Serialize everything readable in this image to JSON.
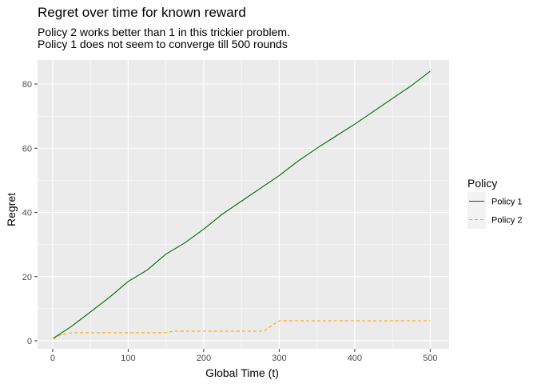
{
  "chart_data": {
    "type": "line",
    "title": "Regret over time for known reward",
    "subtitle": [
      "Policy 2 works better than 1 in this trickier problem.",
      "Policy 1 does not seem to converge till 500 rounds"
    ],
    "xlabel": "Global Time (t)",
    "ylabel": "Regret",
    "xlim": [
      -20,
      525
    ],
    "ylim": [
      -2.5,
      87.5
    ],
    "x_ticks": [
      0,
      100,
      200,
      300,
      400,
      500
    ],
    "y_ticks": [
      0,
      20,
      40,
      60,
      80
    ],
    "grid": true,
    "background": "#EBEBEB",
    "legend": {
      "title": "Policy",
      "position": "right"
    },
    "series": [
      {
        "name": "Policy 1",
        "color": "#006400",
        "dash": "solid",
        "x": [
          1,
          25,
          50,
          75,
          100,
          125,
          150,
          175,
          200,
          225,
          250,
          275,
          300,
          325,
          350,
          375,
          400,
          425,
          450,
          475,
          500
        ],
        "y": [
          0.8,
          4.5,
          9.0,
          13.5,
          18.5,
          22.0,
          27.0,
          30.5,
          34.8,
          39.5,
          43.5,
          47.5,
          51.5,
          56.0,
          60.0,
          63.8,
          67.5,
          71.5,
          75.5,
          79.5,
          84.0
        ]
      },
      {
        "name": "Policy 2",
        "color": "#FFA500",
        "dash": "dashed",
        "x": [
          1,
          10,
          20,
          25,
          150,
          160,
          280,
          295,
          300,
          500
        ],
        "y": [
          0.5,
          1.8,
          2.2,
          2.5,
          2.5,
          3.0,
          3.0,
          5.5,
          6.2,
          6.2
        ]
      }
    ]
  }
}
